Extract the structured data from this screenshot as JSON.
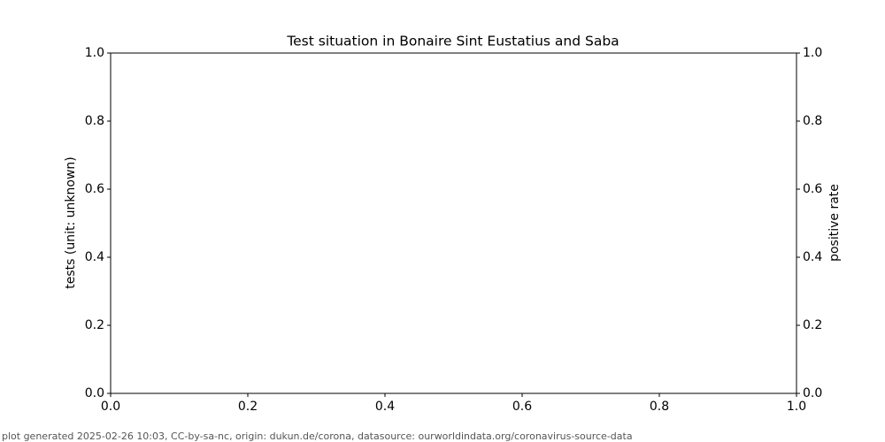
{
  "chart_data": {
    "type": "line",
    "title": "Test situation in Bonaire Sint Eustatius and Saba",
    "ylabel": "tests (unit: unknown)",
    "y2label": "positive rate",
    "xlim": [
      0,
      1
    ],
    "xticks": [
      {
        "value": 0,
        "label": "0.0"
      },
      0.2,
      0.4,
      0.6,
      0.8,
      {
        "value": 1,
        "label": "1.0"
      }
    ],
    "ylim": [
      0,
      1
    ],
    "yticks": [
      {
        "value": 0,
        "label": "0.0"
      },
      0.2,
      0.4,
      0.6,
      0.8,
      {
        "value": 1,
        "label": "1.0"
      }
    ],
    "y2lim": [
      0,
      1
    ],
    "y2ticks": [
      {
        "value": 0,
        "label": "0.0"
      },
      0.2,
      0.4,
      0.6,
      0.8,
      {
        "value": 1,
        "label": "1.0"
      }
    ],
    "grid": false
  },
  "footer": "plot generated 2025-02-26 10:03, CC-by-sa-nc, origin: dukun.de/corona, datasource: ourworldindata.org/coronavirus-source-data"
}
